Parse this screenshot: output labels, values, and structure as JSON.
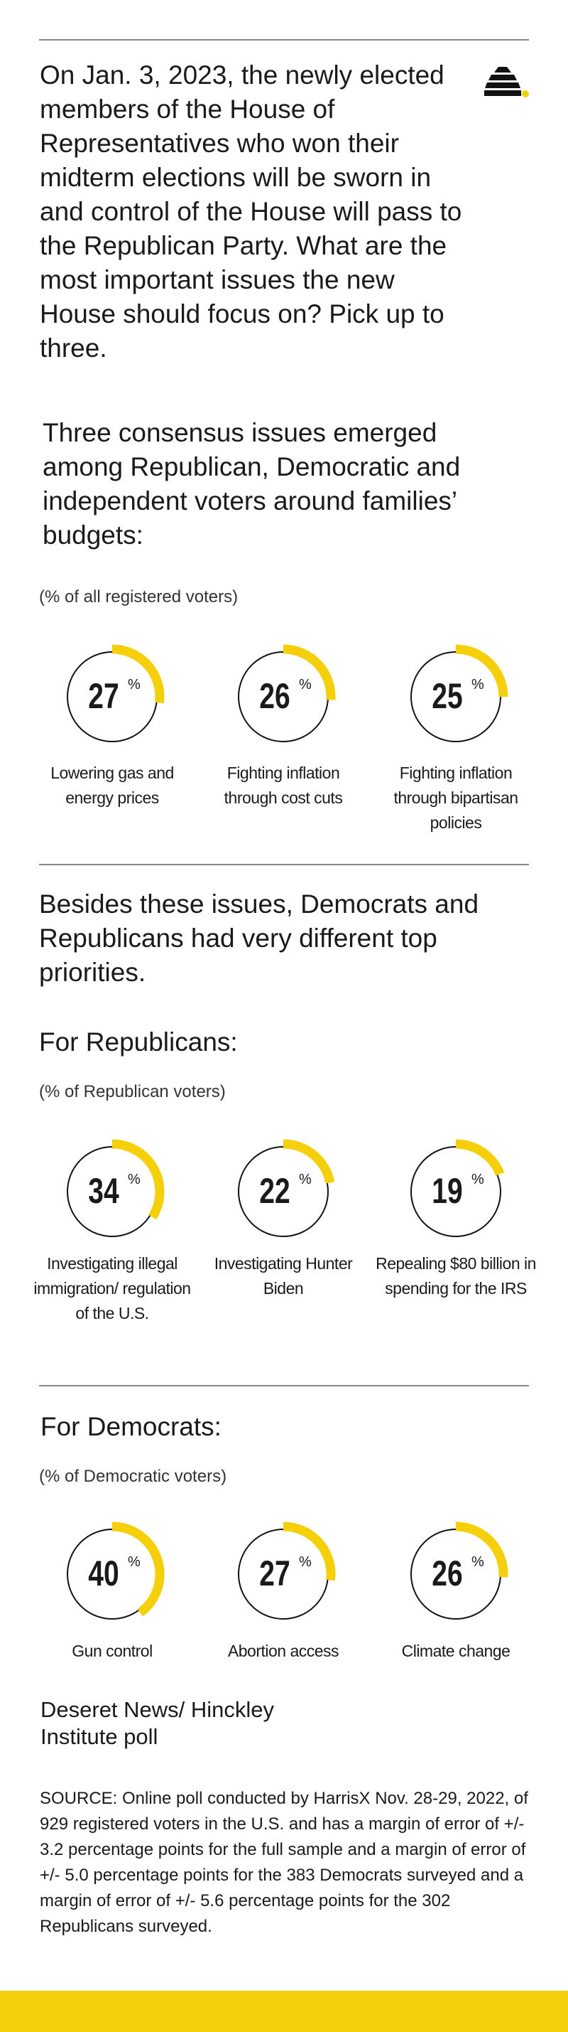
{
  "question": "On Jan. 3, 2023, the newly elected members of the House of Representatives who won their midterm elections will be sworn in and control of the House will pass to the Republican Party. What are the most important issues the new House should focus on? Pick up to three.",
  "divider_text": "Besides these issues, Democrats and Republicans had very different top priorities.",
  "credit": "Deseret News/ Hinckley Institute poll",
  "source": "SOURCE: Online poll conducted by HarrisX Nov. 28-29, 2022, of 929 registered voters in the U.S. and has a margin of error of +/- 3.2 percentage points for the full sample and a margin of error of +/- 5.0 percentage points for the 383 Democrats surveyed and a margin of error of +/- 5.6 percentage points for the 302 Republicans surveyed.",
  "chart_data": [
    {
      "type": "donut",
      "title": "Three consensus issues emerged among Republican, Democratic and independent voters around families’ budgets:",
      "subtitle": "(% of all registered voters)",
      "categories": [
        "Lowering gas and energy prices",
        "Fighting inflation through cost cuts",
        "Fighting inflation through bipartisan policies"
      ],
      "values": [
        27,
        26,
        25
      ],
      "unit": "%",
      "ylim": [
        0,
        100
      ],
      "color": "#f5cf0a"
    },
    {
      "type": "donut",
      "title": "For Republicans:",
      "subtitle": "(% of Republican voters)",
      "categories": [
        "Investigating illegal immigration/ regulation of the U.S.",
        "Investigating Hunter Biden",
        "Repealing $80 billion in spending for the IRS"
      ],
      "values": [
        34,
        22,
        19
      ],
      "unit": "%",
      "ylim": [
        0,
        100
      ],
      "color": "#f5cf0a"
    },
    {
      "type": "donut",
      "title": "For Democrats:",
      "subtitle": "(% of Democratic voters)",
      "categories": [
        "Gun control",
        "Abortion access",
        "Climate change"
      ],
      "values": [
        40,
        27,
        26
      ],
      "unit": "%",
      "ylim": [
        0,
        100
      ],
      "color": "#f5cf0a"
    }
  ]
}
